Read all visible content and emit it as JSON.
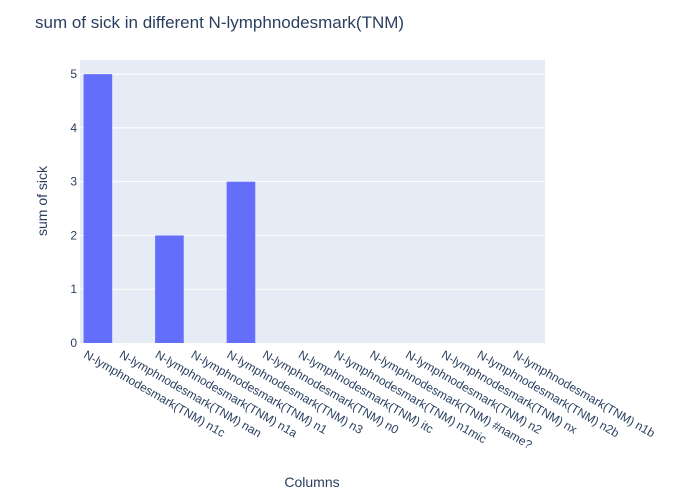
{
  "chart_data": {
    "type": "bar",
    "title": "sum of sick in different N-lymphnodesmark(TNM)",
    "xlabel": "Columns",
    "ylabel": "sum of sick",
    "categories": [
      "N-lymphnodesmark(TNM) n1c",
      "N-lymphnodesmark(TNM) nan",
      "N-lymphnodesmark(TNM) n1a",
      "N-lymphnodesmark(TNM) n1",
      "N-lymphnodesmark(TNM) n3",
      "N-lymphnodesmark(TNM) n0",
      "N-lymphnodesmark(TNM) itc",
      "N-lymphnodesmark(TNM) n1mic",
      "N-lymphnodesmark(TNM) #name?",
      "N-lymphnodesmark(TNM) n2",
      "N-lymphnodesmark(TNM) nx",
      "N-lymphnodesmark(TNM) n2b",
      "N-lymphnodesmark(TNM) n1b"
    ],
    "values": [
      5,
      0,
      2,
      0,
      3,
      0,
      0,
      0,
      0,
      0,
      0,
      0,
      0
    ],
    "ylim": [
      0,
      5.263
    ],
    "yticks": [
      "0",
      "1",
      "2",
      "3",
      "4",
      "5"
    ],
    "grid": true,
    "colors": {
      "bar": "#636efa",
      "plot_bg": "#e5ecf6",
      "grid": "#ffffff",
      "text": "#2a3f5f"
    }
  }
}
